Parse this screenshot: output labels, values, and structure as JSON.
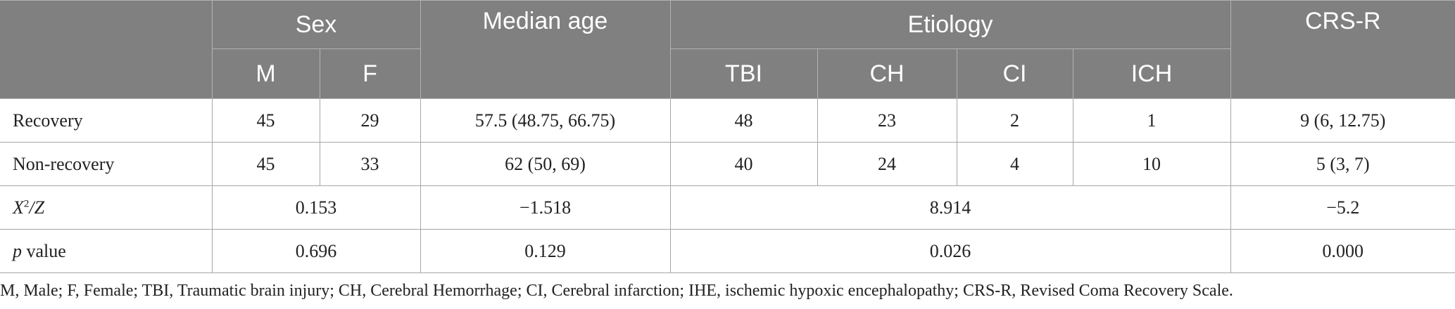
{
  "header": {
    "sex": "Sex",
    "median_age": "Median age",
    "etiology": "Etiology",
    "crsr": "CRS-R",
    "m": "M",
    "f": "F",
    "tbi": "TBI",
    "ch": "CH",
    "ci": "CI",
    "ich": "ICH"
  },
  "rows": [
    {
      "label": "Recovery",
      "m": "45",
      "f": "29",
      "age": "57.5 (48.75, 66.75)",
      "tbi": "48",
      "ch": "23",
      "ci": "2",
      "ich": "1",
      "crsr": "9 (6, 12.75)"
    },
    {
      "label": "Non-recovery",
      "m": "45",
      "f": "33",
      "age": "62 (50, 69)",
      "tbi": "40",
      "ch": "24",
      "ci": "4",
      "ich": "10",
      "crsr": "5 (3, 7)"
    }
  ],
  "stat_rows": [
    {
      "label_main": "X",
      "label_sup": "2",
      "label_rest": "/Z",
      "sex": "0.153",
      "age": "−1.518",
      "etiology": "8.914",
      "crsr": "−5.2"
    },
    {
      "label_main": "p",
      "label_rest": " value",
      "sex": "0.696",
      "age": "0.129",
      "etiology": "0.026",
      "crsr": "0.000"
    }
  ],
  "footnote": "M, Male; F, Female; TBI, Traumatic brain injury; CH, Cerebral Hemorrhage; CI, Cerebral infarction; IHE, ischemic hypoxic encephalopathy; CRS-R, Revised Coma Recovery Scale."
}
